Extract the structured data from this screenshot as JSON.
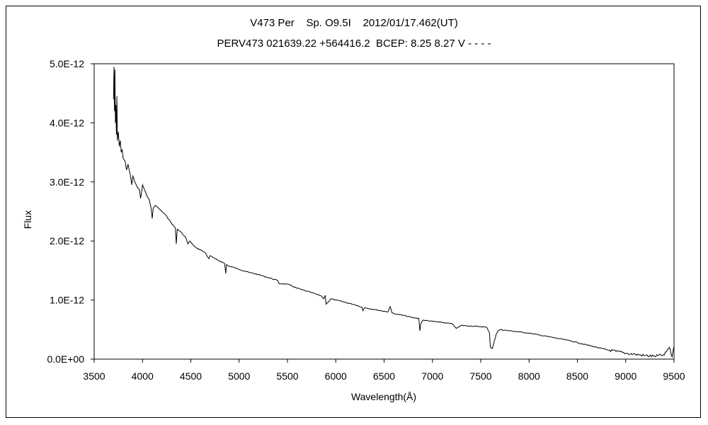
{
  "chart_data": {
    "type": "line",
    "title": "V473 Per    Sp. O9.5I    2012/01/17.462(UT)",
    "subtitle": "PERV473 021639.22 +564416.2  BCEP: 8.25 8.27 V - - - -",
    "xlabel": "Wavelength(Å)",
    "ylabel": "Flux",
    "xlim": [
      3500,
      9500
    ],
    "ylim": [
      0,
      5e-12
    ],
    "x_ticks": [
      "3500",
      "4000",
      "4500",
      "5000",
      "5500",
      "6000",
      "6500",
      "7000",
      "7500",
      "8000",
      "8500",
      "9000",
      "9500"
    ],
    "y_ticks": [
      "0.0E+00",
      "1.0E-12",
      "2.0E-12",
      "3.0E-12",
      "4.0E-12",
      "5.0E-12"
    ],
    "grid": false,
    "legend": "none",
    "line_color": "#000000",
    "series": [
      {
        "x": [
          3700,
          3705,
          3710,
          3715,
          3720,
          3725,
          3730,
          3735,
          3740,
          3750,
          3760,
          3770,
          3780,
          3790,
          3800,
          3820,
          3835,
          3850,
          3870,
          3889,
          3900,
          3920,
          3950,
          3970,
          3980,
          4000,
          4026,
          4050,
          4070,
          4090,
          4101,
          4110,
          4130,
          4150,
          4200,
          4250,
          4300,
          4340,
          4350,
          4360,
          4400,
          4450,
          4471,
          4490,
          4541,
          4560,
          4600,
          4650,
          4686,
          4700,
          4750,
          4800,
          4850,
          4861,
          4870,
          4900,
          4950,
          5000,
          5100,
          5200,
          5300,
          5400,
          5411,
          5500,
          5600,
          5700,
          5800,
          5850,
          5875,
          5890,
          5900,
          5950,
          6000,
          6100,
          6200,
          6270,
          6280,
          6300,
          6400,
          6500,
          6540,
          6563,
          6580,
          6600,
          6700,
          6800,
          6860,
          6870,
          6880,
          6900,
          7000,
          7100,
          7200,
          7250,
          7300,
          7400,
          7500,
          7560,
          7590,
          7600,
          7620,
          7640,
          7660,
          7680,
          7700,
          7750,
          7800,
          7900,
          8000,
          8100,
          8200,
          8300,
          8400,
          8500,
          8600,
          8700,
          8800,
          8900,
          9000,
          9100,
          9200,
          9300,
          9400,
          9450,
          9480,
          9500
        ],
        "y": [
          4.4e-12,
          4.95e-12,
          4.2e-12,
          4.9e-12,
          4e-12,
          4.3e-12,
          3.8e-12,
          4.45e-12,
          3.7e-12,
          3.85e-12,
          3.6e-12,
          3.7e-12,
          3.5e-12,
          3.55e-12,
          3.4e-12,
          3.35e-12,
          3.2e-12,
          3.3e-12,
          3.15e-12,
          2.95e-12,
          3.1e-12,
          3e-12,
          2.9e-12,
          2.85e-12,
          2.72e-12,
          2.95e-12,
          2.85e-12,
          2.75e-12,
          2.7e-12,
          2.55e-12,
          2.38e-12,
          2.55e-12,
          2.6e-12,
          2.58e-12,
          2.5e-12,
          2.42e-12,
          2.3e-12,
          2.22e-12,
          1.95e-12,
          2.2e-12,
          2.15e-12,
          2.05e-12,
          1.95e-12,
          2e-12,
          1.9e-12,
          1.88e-12,
          1.85e-12,
          1.8e-12,
          1.7e-12,
          1.75e-12,
          1.7e-12,
          1.66e-12,
          1.62e-12,
          1.45e-12,
          1.6e-12,
          1.57e-12,
          1.55e-12,
          1.52e-12,
          1.47e-12,
          1.43e-12,
          1.38e-12,
          1.33e-12,
          1.28e-12,
          1.27e-12,
          1.2e-12,
          1.15e-12,
          1.1e-12,
          1.07e-12,
          1.02e-12,
          1.08e-12,
          9.3e-13,
          1.02e-12,
          1e-12,
          9.6e-13,
          9.2e-13,
          8.8e-13,
          8.2e-13,
          8.7e-13,
          8.4e-13,
          8.1e-13,
          8e-13,
          8.9e-13,
          7.9e-13,
          7.7e-13,
          7.4e-13,
          7e-13,
          6.9e-13,
          4.8e-13,
          6e-13,
          6.6e-13,
          6.4e-13,
          6.2e-13,
          6e-13,
          5.2e-13,
          5.7e-13,
          5.6e-13,
          5.5e-13,
          5.4e-13,
          4.5e-13,
          2e-13,
          1.8e-13,
          3e-13,
          4.2e-13,
          4.8e-13,
          5e-13,
          4.9e-13,
          4.8e-13,
          4.6e-13,
          4.4e-13,
          4.1e-13,
          3.8e-13,
          3.5e-13,
          3.2e-13,
          2.8e-13,
          2.4e-13,
          2e-13,
          1.6e-13,
          1.3e-13,
          1e-13,
          8e-14,
          6e-14,
          5e-14,
          7e-14,
          2e-13,
          4e-14,
          2.2e-13
        ]
      }
    ]
  }
}
